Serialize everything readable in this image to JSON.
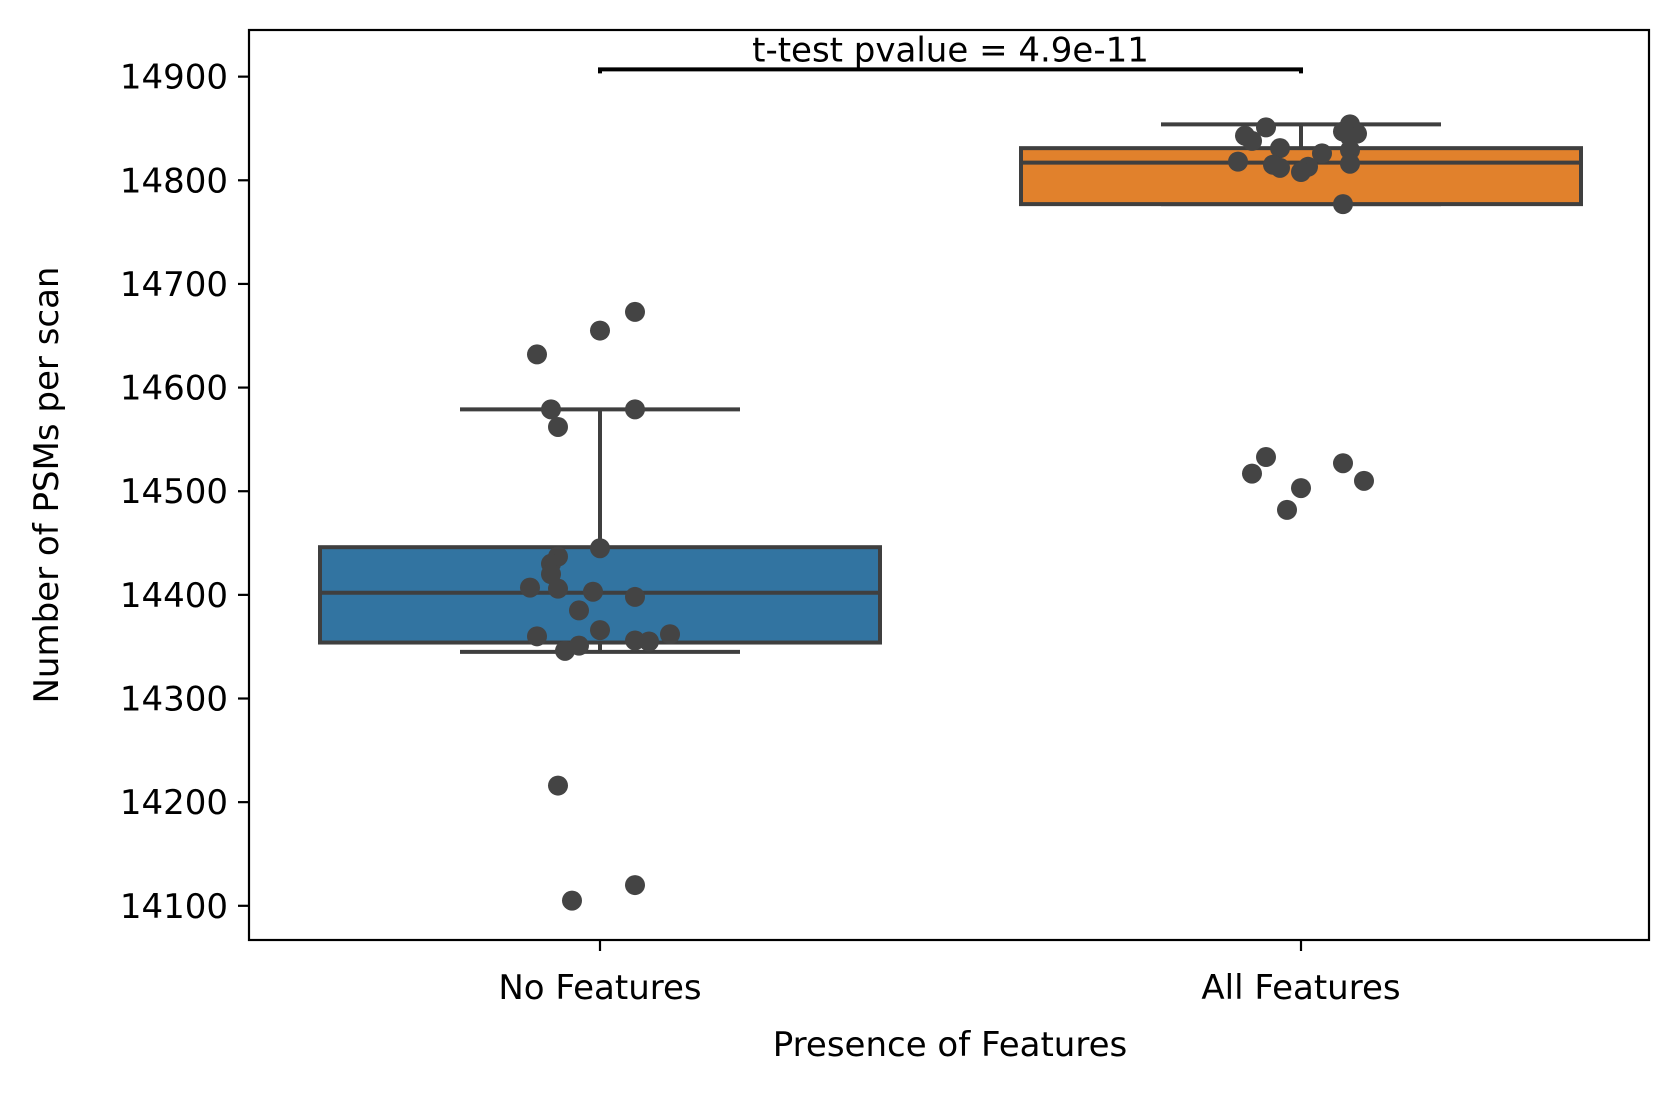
{
  "chart_data": {
    "type": "box",
    "title": "",
    "xlabel": "Presence of Features",
    "ylabel": "Number of PSMs per scan",
    "ylim": [
      14067,
      14945
    ],
    "yticks": [
      14100,
      14200,
      14300,
      14400,
      14500,
      14600,
      14700,
      14800,
      14900
    ],
    "categories": [
      "No Features",
      "All Features"
    ],
    "grid": false,
    "legend": "none",
    "annotation": {
      "text": "t-test pvalue = 4.9e-11",
      "between": [
        "No Features",
        "All Features"
      ],
      "y": 14907
    },
    "boxes": [
      {
        "category": "No Features",
        "color": "#3274a1",
        "whisker_low": 14345,
        "q1": 14354,
        "median": 14402,
        "q3": 14446,
        "whisker_high": 14579
      },
      {
        "category": "All Features",
        "color": "#e1812c",
        "whisker_low": 14777,
        "q1": 14777,
        "median": 14817,
        "q3": 14831,
        "whisker_high": 14854
      }
    ],
    "points": [
      {
        "category": "No Features",
        "color": "#444444",
        "values": [
          14673,
          14655,
          14632,
          14579,
          14579,
          14562,
          14445,
          14437,
          14430,
          14420,
          14407,
          14406,
          14403,
          14398,
          14385,
          14366,
          14362,
          14360,
          14356,
          14355,
          14351,
          14346,
          14216,
          14120,
          14105
        ],
        "jitter": [
          0.05,
          0.0,
          -0.09,
          -0.07,
          0.05,
          -0.06,
          0.0,
          -0.06,
          -0.07,
          -0.07,
          -0.1,
          -0.06,
          -0.01,
          0.05,
          -0.03,
          0.0,
          0.1,
          -0.09,
          0.05,
          0.07,
          -0.03,
          -0.05,
          -0.06,
          0.05,
          -0.04
        ]
      },
      {
        "category": "All Features",
        "color": "#444444",
        "values": [
          14854,
          14851,
          14847,
          14845,
          14843,
          14842,
          14838,
          14831,
          14829,
          14826,
          14818,
          14816,
          14815,
          14813,
          14812,
          14808,
          14777,
          14533,
          14527,
          14517,
          14510,
          14503,
          14482
        ],
        "jitter": [
          0.07,
          -0.05,
          0.06,
          0.08,
          -0.08,
          0.07,
          -0.07,
          -0.03,
          0.07,
          0.03,
          -0.09,
          0.07,
          -0.04,
          0.01,
          -0.03,
          0.0,
          0.06,
          -0.05,
          0.06,
          -0.07,
          0.09,
          0.0,
          -0.02
        ]
      }
    ]
  }
}
